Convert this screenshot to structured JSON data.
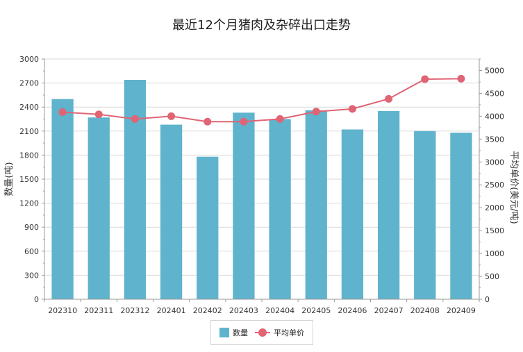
{
  "chart_data": {
    "title": "最近12个月猪肉及杂碎出口走势",
    "type": "bar",
    "categories": [
      "202310",
      "202311",
      "202312",
      "202401",
      "202402",
      "202403",
      "202404",
      "202405",
      "202406",
      "202407",
      "202408",
      "202409"
    ],
    "series": [
      {
        "name": "数量",
        "type": "bar",
        "axis": "left",
        "color": "#5fb3cd",
        "values": [
          2500,
          2270,
          2740,
          2180,
          1780,
          2330,
          2250,
          2360,
          2120,
          2350,
          2100,
          2080
        ]
      },
      {
        "name": "平均单价",
        "type": "line",
        "axis": "right",
        "color": "#e06474",
        "values": [
          4090,
          4040,
          3940,
          4000,
          3880,
          3880,
          3940,
          4100,
          4160,
          4380,
          4810,
          4820
        ]
      }
    ],
    "ylabel_left": "数量(吨)",
    "ylabel_right": "平均单价(美元/吨)",
    "ylim_left": [
      0,
      3000
    ],
    "yticks_left": [
      "0",
      "300",
      "600",
      "900",
      "1200",
      "1500",
      "1800",
      "2100",
      "2400",
      "2700",
      "3000"
    ],
    "ylim_right": [
      0,
      5250
    ],
    "yticks_right": [
      "0",
      "500",
      "1000",
      "1500",
      "2000",
      "2500",
      "3000",
      "3500",
      "4000",
      "4500",
      "5000"
    ],
    "grid": true,
    "legend_position": "bottom-center"
  }
}
